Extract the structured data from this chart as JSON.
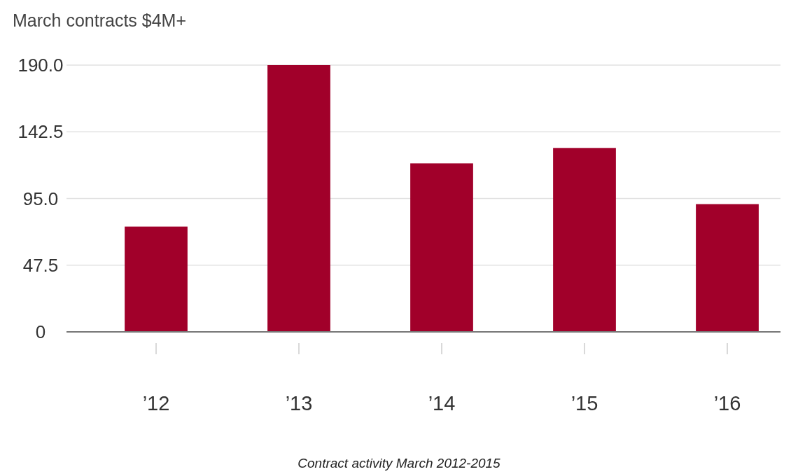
{
  "chart_data": {
    "type": "bar",
    "title": "March contracts $4M+",
    "categories": [
      "’12",
      "’13",
      "’14",
      "’15",
      "’16"
    ],
    "values": [
      75,
      190,
      120,
      131,
      91
    ],
    "color": "#a1002a",
    "ylim": [
      0,
      190
    ],
    "yticks": [
      0,
      47.5,
      {
        "value": 95,
        "label": "95.0"
      },
      142.5,
      {
        "value": 190,
        "label": "190.0"
      }
    ],
    "grid": "y",
    "annotations": [
      "Contract activity March 2012-2015"
    ]
  }
}
